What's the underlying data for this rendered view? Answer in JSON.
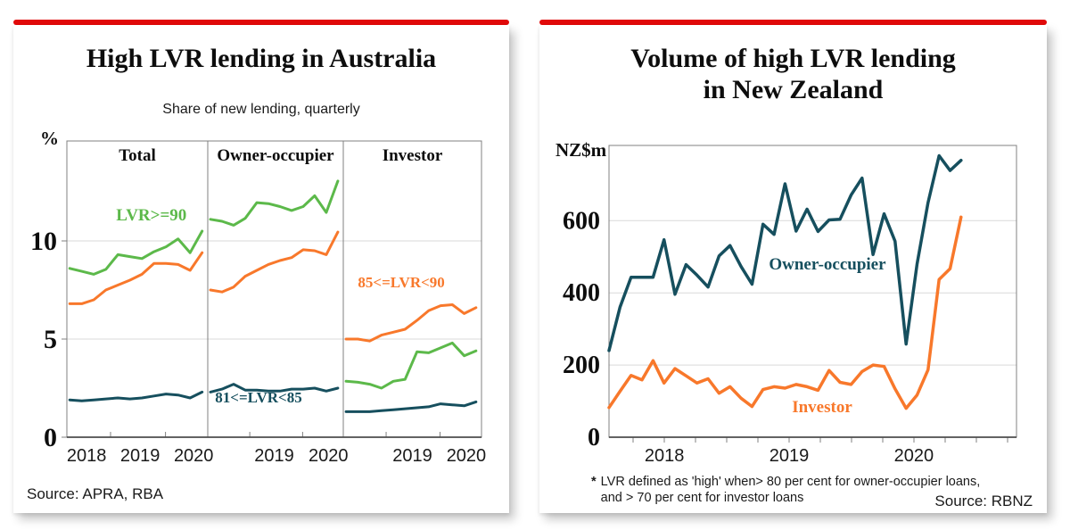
{
  "page": {
    "accent_red": "#e20a0a",
    "card_bg": "#ffffff"
  },
  "left_card": {
    "title": "High LVR lending in Australia",
    "subtitle": "Share of new lending, quarterly",
    "y_unit": "%",
    "source": "Source: APRA, RBA"
  },
  "right_card": {
    "title_line1": "Volume of high LVR lending",
    "title_line2": "in New Zealand",
    "y_unit": "NZ$m",
    "footnote_star": "*",
    "footnote_line1": "LVR defined  as  'high' when> 80 per cent for owner-occupier loans,",
    "footnote_line2": "and >  70 per cent for investor loans",
    "source": "Source: RBNZ"
  },
  "chart_data": [
    {
      "type": "line",
      "title": "High LVR lending in Australia",
      "subtitle": "Share of new lending, quarterly",
      "ylabel": "%",
      "ylim": [
        0,
        15
      ],
      "yticks": [
        "0",
        "5",
        "10"
      ],
      "ytick_values": [
        0,
        5,
        10
      ],
      "gridline_values": [
        5,
        10
      ],
      "grid": true,
      "x_period": "2017Q3 to 2020Q2, quarterly",
      "source": "Source: APRA, RBA",
      "panels": [
        {
          "label": "Total",
          "xticks": [
            {
              "label": "2018",
              "f": 0.14
            },
            {
              "label": "2019",
              "f": 0.52
            },
            {
              "label": "2020",
              "f": 0.9
            }
          ],
          "series": [
            {
              "name": "LVR>=90",
              "color": "#5cb94a",
              "values": [
                8.6,
                8.45,
                8.3,
                8.55,
                9.3,
                9.2,
                9.1,
                9.45,
                9.7,
                10.1,
                9.4,
                10.5
              ]
            },
            {
              "name": "85<=LVR<90",
              "color": "#f8782b",
              "values": [
                6.8,
                6.8,
                7.0,
                7.5,
                7.75,
                8.0,
                8.3,
                8.85,
                8.85,
                8.8,
                8.5,
                9.4
              ]
            },
            {
              "name": "81<=LVR<85",
              "color": "#164f5e",
              "values": [
                1.9,
                1.85,
                1.9,
                1.95,
                2.0,
                1.95,
                2.0,
                2.1,
                2.2,
                2.15,
                2.0,
                2.3
              ]
            }
          ]
        },
        {
          "label": "Owner-occupier",
          "xticks": [
            {
              "label": "2019",
              "f": 0.49
            },
            {
              "label": "2020",
              "f": 0.89
            }
          ],
          "series": [
            {
              "name": "LVR>=90",
              "color": "#5cb94a",
              "values": [
                11.1,
                11.0,
                10.8,
                11.15,
                11.95,
                11.9,
                11.75,
                11.55,
                11.75,
                12.3,
                11.45,
                13.05
              ]
            },
            {
              "name": "85<=LVR<90",
              "color": "#f8782b",
              "values": [
                7.5,
                7.4,
                7.65,
                8.2,
                8.5,
                8.8,
                9.0,
                9.15,
                9.55,
                9.5,
                9.3,
                10.45
              ]
            },
            {
              "name": "81<=LVR<85",
              "color": "#164f5e",
              "values": [
                2.3,
                2.45,
                2.7,
                2.4,
                2.4,
                2.35,
                2.35,
                2.45,
                2.45,
                2.5,
                2.35,
                2.5
              ]
            }
          ]
        },
        {
          "label": "Investor",
          "xticks": [
            {
              "label": "2019",
              "f": 0.5
            },
            {
              "label": "2020",
              "f": 0.89
            }
          ],
          "series": [
            {
              "name": "LVR>=90",
              "color": "#5cb94a",
              "values": [
                2.85,
                2.8,
                2.7,
                2.5,
                2.85,
                2.95,
                4.35,
                4.3,
                4.55,
                4.8,
                4.15,
                4.4
              ]
            },
            {
              "name": "85<=LVR<90",
              "color": "#f8782b",
              "values": [
                5.0,
                5.0,
                4.9,
                5.2,
                5.35,
                5.5,
                5.95,
                6.45,
                6.7,
                6.75,
                6.3,
                6.6
              ]
            },
            {
              "name": "81<=LVR<85",
              "color": "#164f5e",
              "values": [
                1.3,
                1.3,
                1.3,
                1.35,
                1.4,
                1.45,
                1.5,
                1.55,
                1.7,
                1.65,
                1.6,
                1.8
              ]
            }
          ]
        }
      ],
      "annotations": [
        {
          "text": "LVR>=90",
          "panel": 0,
          "fx": 0.6,
          "y": 11.05,
          "color": "#5cb94a",
          "size": 19
        },
        {
          "text": "81<=LVR<85",
          "panel": 1,
          "fx": 0.375,
          "y": 1.77,
          "color": "#164f5e",
          "size": 17
        },
        {
          "text": "85<=LVR<90",
          "panel": 2,
          "fx": 0.42,
          "y": 7.64,
          "color": "#f8782b",
          "size": 17
        }
      ]
    },
    {
      "type": "line",
      "title": "Volume of high LVR lending in New Zealand",
      "ylabel": "NZ$m",
      "ylim": [
        0,
        810
      ],
      "yticks": [
        "0",
        "200",
        "400",
        "600"
      ],
      "ytick_values": [
        0,
        200,
        400,
        600
      ],
      "gridline_values": [
        200,
        400,
        600
      ],
      "grid": true,
      "x_period": "monthly, mid-2017 to mid-2020",
      "x_span_fraction": 0.864,
      "quarterly_tick_count": 13,
      "source": "Source: RBNZ",
      "footnote": "* LVR defined as 'high' when> 80 per cent for owner-occupier loans, and > 70 per cent for investor loans",
      "xticks": [
        {
          "label": "2018",
          "f": 0.136
        },
        {
          "label": "2019",
          "f": 0.442
        },
        {
          "label": "2020",
          "f": 0.748
        }
      ],
      "series": [
        {
          "name": "Investor",
          "color": "#f8782b",
          "values": [
            82,
            127,
            171,
            159,
            212,
            150,
            190,
            170,
            150,
            162,
            122,
            140,
            108,
            85,
            132,
            140,
            136,
            146,
            140,
            130,
            185,
            152,
            146,
            182,
            200,
            196,
            134,
            80,
            117,
            187,
            437,
            467,
            610
          ]
        },
        {
          "name": "Owner-occupier",
          "color": "#164f5e",
          "values": [
            240,
            360,
            443,
            443,
            443,
            547,
            396,
            478,
            449,
            416,
            502,
            531,
            473,
            424,
            590,
            562,
            702,
            571,
            632,
            570,
            602,
            604,
            671,
            718,
            506,
            619,
            543,
            258,
            480,
            650,
            780,
            739,
            767
          ]
        }
      ],
      "annotations": [
        {
          "text": "Owner-occupier",
          "fx": 0.536,
          "y": 465,
          "color": "#164f5e",
          "size": 19
        },
        {
          "text": "Investor",
          "fx": 0.523,
          "y": 69,
          "color": "#f8782b",
          "size": 19
        }
      ]
    }
  ]
}
